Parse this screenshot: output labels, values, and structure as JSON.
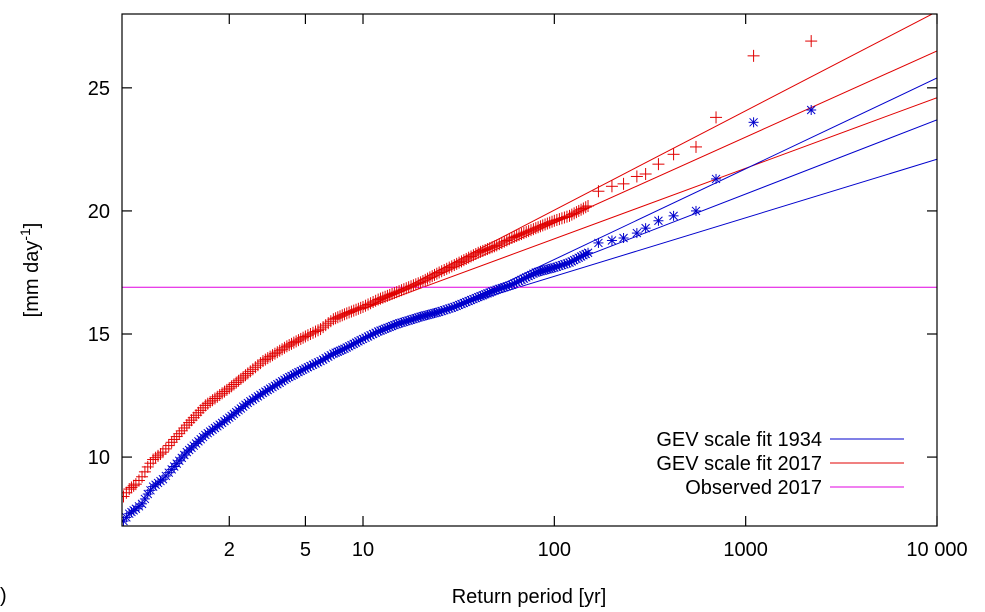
{
  "chart_data": {
    "type": "scatter",
    "xlabel": "Return period [yr]",
    "ylabel_main": "[mm day",
    "ylabel_sup": "-1",
    "ylabel_end": "]",
    "x_scale": "log",
    "xlim": [
      0.55,
      10000
    ],
    "ylim": [
      7.2,
      28
    ],
    "x_ticks": [
      {
        "value": 2,
        "label": "2"
      },
      {
        "value": 5,
        "label": "5"
      },
      {
        "value": 10,
        "label": "10"
      },
      {
        "value": 100,
        "label": "100"
      },
      {
        "value": 1000,
        "label": "1000"
      },
      {
        "value": 10000,
        "label": "10 000"
      }
    ],
    "y_ticks": [
      {
        "value": 10,
        "label": "10"
      },
      {
        "value": 15,
        "label": "15"
      },
      {
        "value": 20,
        "label": "20"
      },
      {
        "value": 25,
        "label": "25"
      }
    ],
    "grid": false,
    "legend_position": "bottom-right",
    "legend": [
      {
        "label": "GEV scale fit 1934",
        "color": "#0000cc"
      },
      {
        "label": "GEV scale fit 2017",
        "color": "#e00000"
      },
      {
        "label": "Observed 2017",
        "color": "#e000e0"
      }
    ],
    "series": [
      {
        "name": "GEV scale fit 2017",
        "color": "#e00000",
        "marker": "plus",
        "x": [
          0.56,
          0.6,
          0.65,
          0.7,
          0.75,
          0.8,
          0.9,
          1,
          1.2,
          1.5,
          2,
          2.5,
          3,
          4,
          5,
          6,
          7,
          8,
          10,
          12,
          15,
          20,
          25,
          30,
          40,
          50,
          60,
          80,
          100,
          120,
          150,
          170,
          200,
          230,
          270,
          300,
          350,
          420,
          550,
          700,
          1100,
          2200
        ],
        "y": [
          8.4,
          8.7,
          8.9,
          9.2,
          9.6,
          9.9,
          10.2,
          10.6,
          11.3,
          12.1,
          12.8,
          13.4,
          13.9,
          14.5,
          14.9,
          15.2,
          15.6,
          15.8,
          16.1,
          16.4,
          16.7,
          17.1,
          17.5,
          17.8,
          18.3,
          18.6,
          18.9,
          19.3,
          19.6,
          19.8,
          20.2,
          20.8,
          21.0,
          21.1,
          21.4,
          21.5,
          21.9,
          22.3,
          22.6,
          23.8,
          26.3,
          26.9
        ]
      },
      {
        "name": "GEV scale fit 1934",
        "color": "#0000cc",
        "marker": "star",
        "x": [
          0.56,
          0.6,
          0.65,
          0.7,
          0.75,
          0.8,
          0.9,
          1,
          1.2,
          1.5,
          2,
          2.5,
          3,
          4,
          5,
          6,
          7,
          8,
          10,
          12,
          15,
          20,
          25,
          30,
          40,
          50,
          60,
          80,
          100,
          120,
          150,
          170,
          200,
          230,
          270,
          300,
          350,
          420,
          550,
          700,
          1100,
          2200
        ],
        "y": [
          7.4,
          7.7,
          7.9,
          8.1,
          8.5,
          8.8,
          9.1,
          9.5,
          10.2,
          10.9,
          11.6,
          12.2,
          12.6,
          13.2,
          13.6,
          13.9,
          14.2,
          14.4,
          14.8,
          15.1,
          15.4,
          15.7,
          15.9,
          16.1,
          16.5,
          16.8,
          17.0,
          17.5,
          17.7,
          17.9,
          18.3,
          18.7,
          18.8,
          18.9,
          19.1,
          19.3,
          19.6,
          19.8,
          20.0,
          21.3,
          23.6,
          24.1
        ]
      }
    ],
    "fit_lines": [
      {
        "name": "GEV scale fit 2017 upper",
        "color": "#e00000",
        "x": [
          10,
          10000
        ],
        "y": [
          16.0,
          28.1
        ]
      },
      {
        "name": "GEV scale fit 2017 central",
        "color": "#e00000",
        "x": [
          10,
          10000
        ],
        "y": [
          16.0,
          26.5
        ]
      },
      {
        "name": "GEV scale fit 2017 lower",
        "color": "#e00000",
        "x": [
          10,
          10000
        ],
        "y": [
          16.0,
          24.6
        ]
      },
      {
        "name": "GEV scale fit 1934 upper",
        "color": "#0000cc",
        "x": [
          30,
          10000
        ],
        "y": [
          16.1,
          25.4
        ]
      },
      {
        "name": "GEV scale fit 1934 central",
        "color": "#0000cc",
        "x": [
          30,
          10000
        ],
        "y": [
          16.1,
          23.7
        ]
      },
      {
        "name": "GEV scale fit 1934 lower",
        "color": "#0000cc",
        "x": [
          30,
          10000
        ],
        "y": [
          16.1,
          22.1
        ]
      }
    ],
    "hlines": [
      {
        "name": "Observed 2017",
        "color": "#e000e0",
        "y": 16.9
      }
    ]
  },
  "corner_label": ")"
}
